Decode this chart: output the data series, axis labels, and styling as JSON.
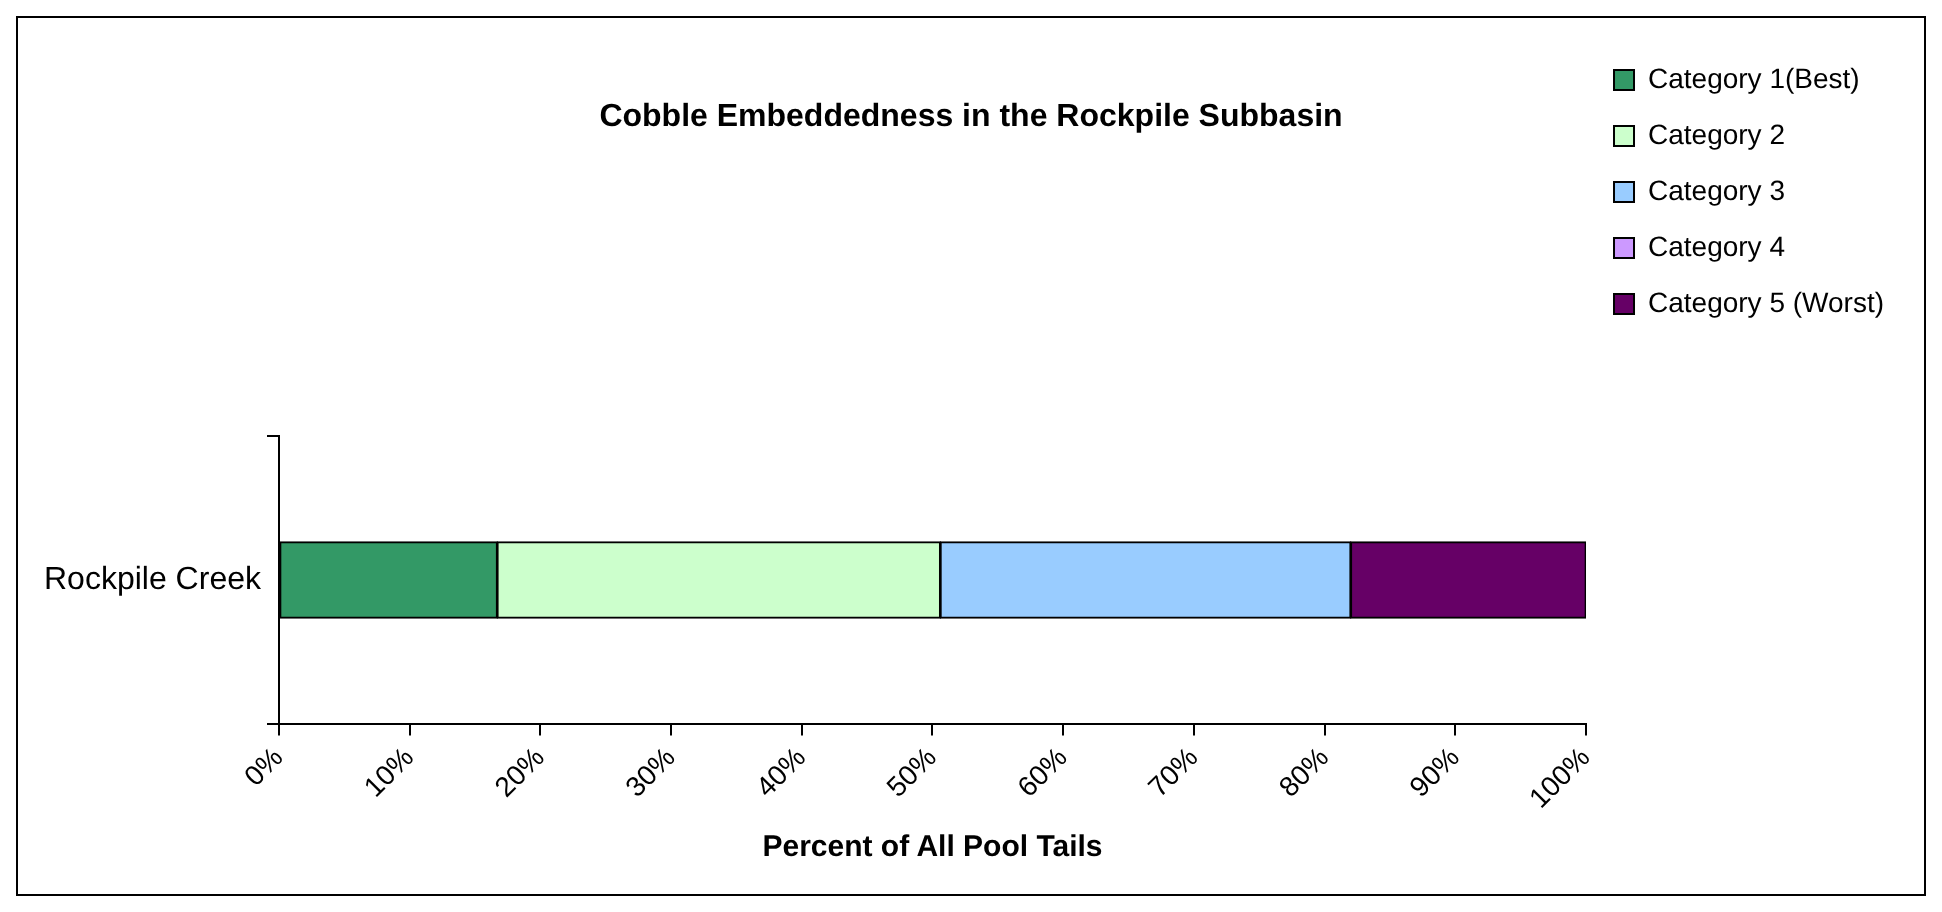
{
  "chart_data": {
    "type": "bar",
    "orientation": "horizontal",
    "stacked": true,
    "title": "Cobble Embeddedness in the Rockpile Subbasin",
    "xlabel": "Percent of All Pool Tails",
    "categories": [
      "Rockpile Creek"
    ],
    "series": [
      {
        "name": "Category 1(Best)",
        "color": "#339966",
        "values": [
          16.7
        ]
      },
      {
        "name": "Category 2",
        "color": "#ccffcc",
        "values": [
          33.9
        ]
      },
      {
        "name": "Category 3",
        "color": "#99ccff",
        "values": [
          31.4
        ]
      },
      {
        "name": "Category 4",
        "color": "#cc99ff",
        "values": [
          0
        ]
      },
      {
        "name": "Category 5 (Worst)",
        "color": "#660066",
        "values": [
          18.0
        ]
      }
    ],
    "xlim": [
      0,
      100
    ],
    "xticks": [
      {
        "value": 0,
        "label": "0%"
      },
      {
        "value": 10,
        "label": "10%"
      },
      {
        "value": 20,
        "label": "20%"
      },
      {
        "value": 30,
        "label": "30%"
      },
      {
        "value": 40,
        "label": "40%"
      },
      {
        "value": 50,
        "label": "50%"
      },
      {
        "value": 60,
        "label": "60%"
      },
      {
        "value": 70,
        "label": "70%"
      },
      {
        "value": 80,
        "label": "80%"
      },
      {
        "value": 90,
        "label": "90%"
      },
      {
        "value": 100,
        "label": "100%"
      }
    ],
    "grid": false,
    "legend": "top right"
  }
}
